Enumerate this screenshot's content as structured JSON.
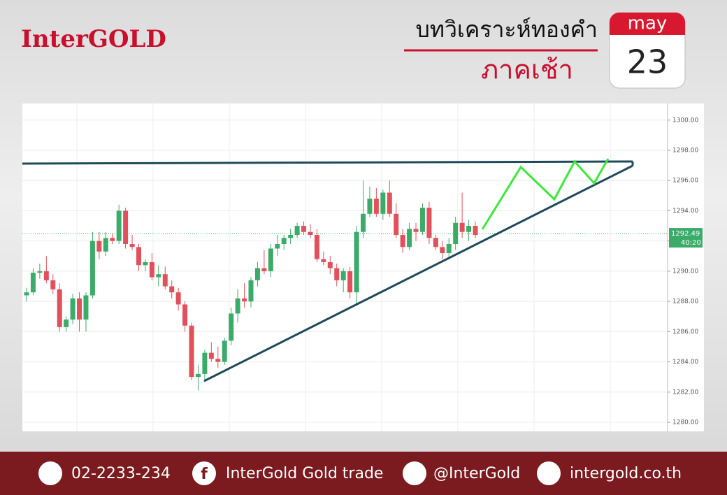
{
  "header": {
    "logo": "InterGOLD",
    "title": "บทวิเคราะห์ทองคำ",
    "subtitle": "ภาคเช้า",
    "month": "may",
    "day": "23"
  },
  "chart_data": {
    "type": "candlestick",
    "open": [
      1288.4,
      1288.6,
      1289.9,
      1290.0,
      1289.4,
      1288.8,
      1286.3,
      1286.8,
      1288.2,
      1286.8,
      1288.4,
      1292.0,
      1291.3,
      1292.2,
      1292.0,
      1294.0,
      1291.8,
      1291.6,
      1290.4,
      1290.6,
      1289.6,
      1289.8,
      1289.0,
      1288.6,
      1287.8,
      1286.4,
      1283.0,
      1283.2,
      1284.6,
      1284.2,
      1284.0,
      1285.4,
      1287.2,
      1288.2,
      1288.0,
      1289.4,
      1290.2,
      1290.0,
      1291.5,
      1291.8,
      1292.2,
      1292.4,
      1293.0,
      1292.6,
      1292.4,
      1290.8,
      1290.6,
      1290.2,
      1289.4,
      1290.0,
      1288.6,
      1292.6,
      1293.8,
      1294.8,
      1293.8,
      1295.2,
      1293.8,
      1292.4,
      1291.6,
      1292.8,
      1292.6,
      1294.2,
      1292.2,
      1291.6,
      1291.2,
      1291.8,
      1293.2,
      1292.6,
      1293.0
    ],
    "high": [
      1288.9,
      1290.2,
      1290.5,
      1291.0,
      1289.8,
      1289.2,
      1287.0,
      1288.5,
      1288.6,
      1288.6,
      1292.6,
      1292.6,
      1292.6,
      1292.5,
      1294.4,
      1294.2,
      1292.4,
      1291.8,
      1290.8,
      1291.2,
      1290.4,
      1290.3,
      1289.4,
      1288.9,
      1288.0,
      1286.6,
      1283.8,
      1284.8,
      1285.3,
      1285.0,
      1285.6,
      1287.6,
      1288.8,
      1289.2,
      1289.6,
      1290.6,
      1291.4,
      1291.8,
      1292.4,
      1292.4,
      1292.8,
      1293.2,
      1293.3,
      1293.1,
      1292.8,
      1291.3,
      1291.0,
      1290.5,
      1290.2,
      1290.3,
      1293.0,
      1296.0,
      1295.6,
      1295.5,
      1295.4,
      1296.0,
      1294.5,
      1292.8,
      1293.2,
      1293.2,
      1294.5,
      1294.6,
      1292.4,
      1292.0,
      1292.2,
      1293.6,
      1295.2,
      1293.4,
      1293.3
    ],
    "low": [
      1288.0,
      1288.4,
      1289.5,
      1289.2,
      1288.5,
      1286.0,
      1286.0,
      1286.5,
      1286.0,
      1286.0,
      1288.2,
      1290.8,
      1291.0,
      1291.8,
      1291.8,
      1291.5,
      1291.4,
      1290.0,
      1290.0,
      1289.4,
      1289.0,
      1288.8,
      1288.2,
      1287.4,
      1286.0,
      1282.8,
      1282.1,
      1282.8,
      1284.0,
      1283.6,
      1283.8,
      1285.1,
      1286.6,
      1287.6,
      1287.6,
      1289.0,
      1289.8,
      1289.6,
      1291.0,
      1291.4,
      1291.8,
      1292.2,
      1292.4,
      1292.2,
      1290.6,
      1290.4,
      1289.8,
      1289.0,
      1288.6,
      1288.2,
      1287.8,
      1292.2,
      1293.6,
      1293.6,
      1293.4,
      1293.6,
      1292.2,
      1291.2,
      1291.4,
      1292.0,
      1292.4,
      1291.8,
      1291.4,
      1290.8,
      1290.8,
      1291.4,
      1292.2,
      1292.0,
      1292.2
    ],
    "close": [
      1288.6,
      1289.9,
      1290.0,
      1289.4,
      1288.8,
      1286.3,
      1286.8,
      1288.2,
      1286.8,
      1288.4,
      1292.0,
      1291.3,
      1292.2,
      1292.0,
      1294.0,
      1291.8,
      1291.6,
      1290.4,
      1290.6,
      1289.6,
      1289.8,
      1289.0,
      1288.6,
      1287.8,
      1286.4,
      1283.0,
      1283.2,
      1284.6,
      1284.2,
      1284.0,
      1285.4,
      1287.2,
      1288.2,
      1288.0,
      1289.4,
      1290.2,
      1290.0,
      1291.5,
      1291.8,
      1292.2,
      1292.4,
      1293.0,
      1292.6,
      1292.4,
      1290.8,
      1290.6,
      1290.2,
      1289.4,
      1290.0,
      1288.6,
      1292.6,
      1293.8,
      1294.8,
      1293.8,
      1295.2,
      1293.8,
      1292.4,
      1291.6,
      1292.8,
      1292.6,
      1294.2,
      1292.2,
      1291.6,
      1291.2,
      1291.8,
      1293.2,
      1292.6,
      1293.0,
      1292.4
    ],
    "up_color": "#3bab6a",
    "down_color": "#e2505c",
    "ylim": [
      1279.4,
      1301.1
    ],
    "yticks": [
      {
        "value": 1280,
        "label": "1280.00"
      },
      {
        "value": 1282,
        "label": "1282.00"
      },
      {
        "value": 1284,
        "label": "1284.00"
      },
      {
        "value": 1286,
        "label": "1286.00"
      },
      {
        "value": 1288,
        "label": "1288.00"
      },
      {
        "value": 1290,
        "label": "1290.00"
      },
      {
        "value": 1292,
        "label": "1292.00"
      },
      {
        "value": 1294,
        "label": "1294.00"
      },
      {
        "value": 1296,
        "label": "1296.00"
      },
      {
        "value": 1298,
        "label": "1298.00"
      },
      {
        "value": 1300,
        "label": "1300.00"
      }
    ],
    "grid": true,
    "last_price": 1292.49,
    "countdown": "40:20"
  },
  "footer": {
    "phone": "02-2233-234",
    "facebook": "InterGold Gold trade",
    "line": "@InterGold",
    "website": "intergold.co.th"
  }
}
